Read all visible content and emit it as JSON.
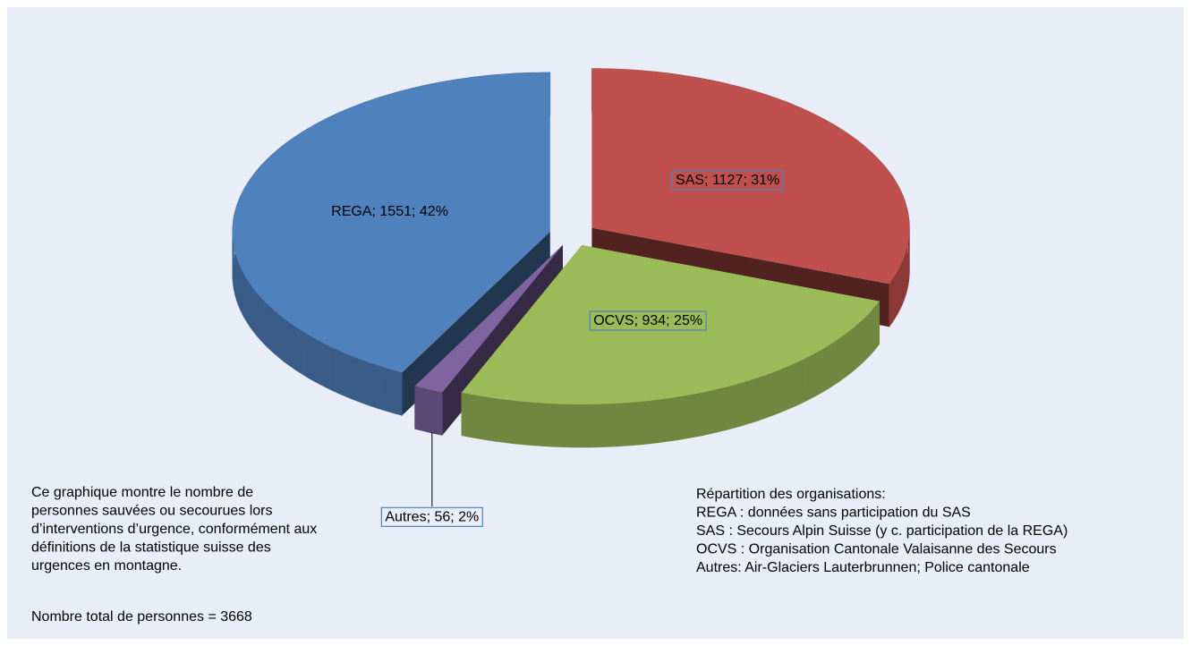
{
  "chart_data": {
    "type": "pie3d",
    "categories": [
      "SAS",
      "OCVS",
      "Autres",
      "REGA"
    ],
    "values": [
      1127,
      934,
      56,
      1551
    ],
    "value_labels": [
      "SAS; 1127; 31%",
      "OCVS; 934; 25%",
      "Autres; 56; 2%",
      "REGA; 1551; 42%"
    ],
    "colors": [
      "#c0504d",
      "#9bbb59",
      "#8064a2",
      "#4f81bd"
    ],
    "label_border": "#4f81bd",
    "background": "#e9edf8",
    "note_left": [
      "Ce graphique montre le nombre de",
      "personnes sauvées ou secourues lors",
      "d’interventions d’urgence, conformément aux",
      "définitions de la statistique suisse des",
      "urgences en montagne."
    ],
    "total": "Nombre total de personnes = 3668",
    "note_right": [
      "Répartition des organisations:",
      "REGA : données sans participation du SAS",
      "SAS : Secours Alpin Suisse (y c. participation de la REGA)",
      "OCVS : Organisation Cantonale Valaisanne des Secours",
      "Autres: Air-Glaciers Lauterbrunnen; Police cantonale"
    ]
  }
}
